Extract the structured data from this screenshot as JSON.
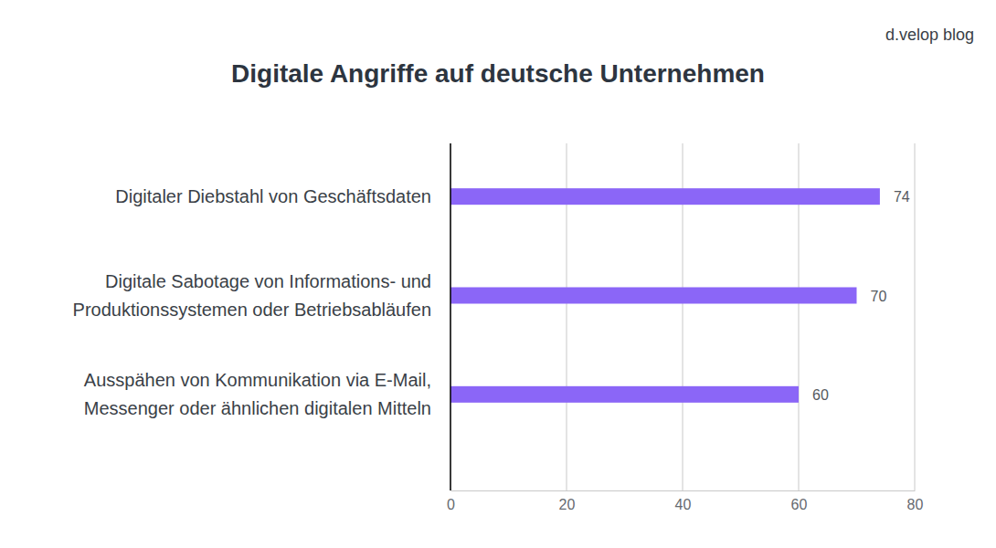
{
  "chart_data": {
    "type": "bar",
    "title": "Digitale Angriffe auf deutsche Unternehmen",
    "annotations": [
      "d.velop blog"
    ],
    "categories": [
      "Digitaler Diebstahl von Geschäftsdaten",
      "Digitale Sabotage von Informations- und\nProduktionssystemen oder Betriebsabläufen",
      "Ausspähen von Kommunikation via E-Mail,\nMessenger oder ähnlichen digitalen Mitteln"
    ],
    "values": [
      74,
      70,
      60
    ],
    "color": "#8b66f7",
    "orientation": "horizontal",
    "xlim": [
      0,
      80
    ],
    "xticks": [
      0,
      20,
      40,
      60,
      80
    ],
    "grid": true,
    "data_labels": true
  }
}
